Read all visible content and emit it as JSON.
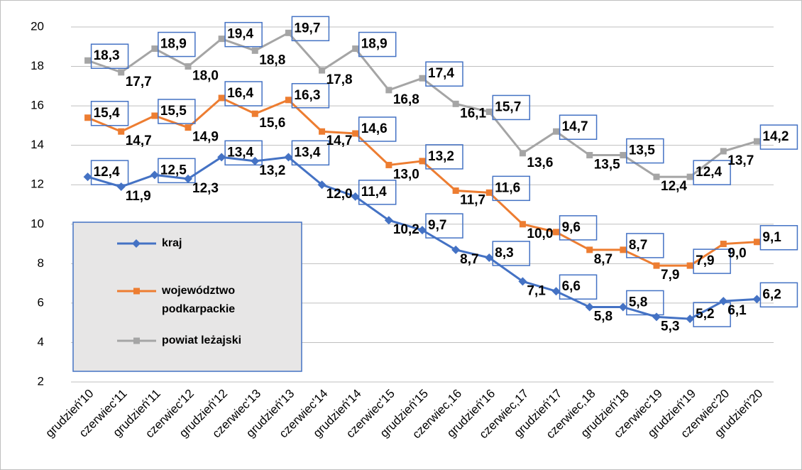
{
  "chart_data": {
    "type": "line",
    "categories": [
      "grudzień'10",
      "czerwiec'11",
      "grudzień'11",
      "czerwiec'12",
      "grudzień'12",
      "czerwiec'13",
      "grudzień'13",
      "czerwiec'14",
      "grudzień'14",
      "czerwiec'15",
      "grudzień'15",
      "czerwiec,16",
      "grudzień'16",
      "czerwiec,17",
      "grudzień'17",
      "czerwiec,18",
      "grudzień'18",
      "czerwiec'19",
      "grudzień'19",
      "czerwiec'20",
      "grudzień'20"
    ],
    "series": [
      {
        "name": "kraj",
        "color": "#4472c4",
        "values": [
          12.4,
          11.9,
          12.5,
          12.3,
          13.4,
          13.2,
          13.4,
          12.0,
          11.4,
          10.2,
          9.7,
          8.7,
          8.3,
          7.1,
          6.6,
          5.8,
          5.8,
          5.3,
          5.2,
          6.1,
          6.2
        ],
        "value_labels": [
          "12,4",
          "11,9",
          "12,5",
          "12,3",
          "13,4",
          "13,2",
          "13,4",
          "12,0",
          "11,4",
          "10,2",
          "9,7",
          "8,7",
          "8,3",
          "7,1",
          "6,6",
          "5,8",
          "5,8",
          "5,3",
          "5,2",
          "6,1",
          "6,2"
        ]
      },
      {
        "name": "województwo podkarpackie",
        "color": "#ed7d31",
        "values": [
          15.4,
          14.7,
          15.5,
          14.9,
          16.4,
          15.6,
          16.3,
          14.7,
          14.6,
          13.0,
          13.2,
          11.7,
          11.6,
          10.0,
          9.6,
          8.7,
          8.7,
          7.9,
          7.9,
          9.0,
          9.1
        ],
        "value_labels": [
          "15,4",
          "14,7",
          "15,5",
          "14,9",
          "16,4",
          "15,6",
          "16,3",
          "14,7",
          "14,6",
          "13,0",
          "13,2",
          "11,7",
          "11,6",
          "10,0",
          "9,6",
          "8,7",
          "8,7",
          "7,9",
          "7,9",
          "9,0",
          "9,1"
        ]
      },
      {
        "name": "powiat leżajski",
        "color": "#a5a5a5",
        "values": [
          18.3,
          17.7,
          18.9,
          18.0,
          19.4,
          18.8,
          19.7,
          17.8,
          18.9,
          16.8,
          17.4,
          16.1,
          15.7,
          13.6,
          14.7,
          13.5,
          13.5,
          12.4,
          12.4,
          13.7,
          14.2
        ],
        "value_labels": [
          "18,3",
          "17,7",
          "18,9",
          "18,0",
          "19,4",
          "18,8",
          "19,7",
          "17,8",
          "18,9",
          "16,8",
          "17,4",
          "16,1",
          "15,7",
          "13,6",
          "14,7",
          "13,5",
          "13,5",
          "12,4",
          "12,4",
          "13,7",
          "14,2"
        ]
      }
    ],
    "ylim": [
      2,
      20
    ],
    "yticks": [
      2,
      4,
      6,
      8,
      10,
      12,
      14,
      16,
      18,
      20
    ],
    "grid": true,
    "legend": "left"
  }
}
